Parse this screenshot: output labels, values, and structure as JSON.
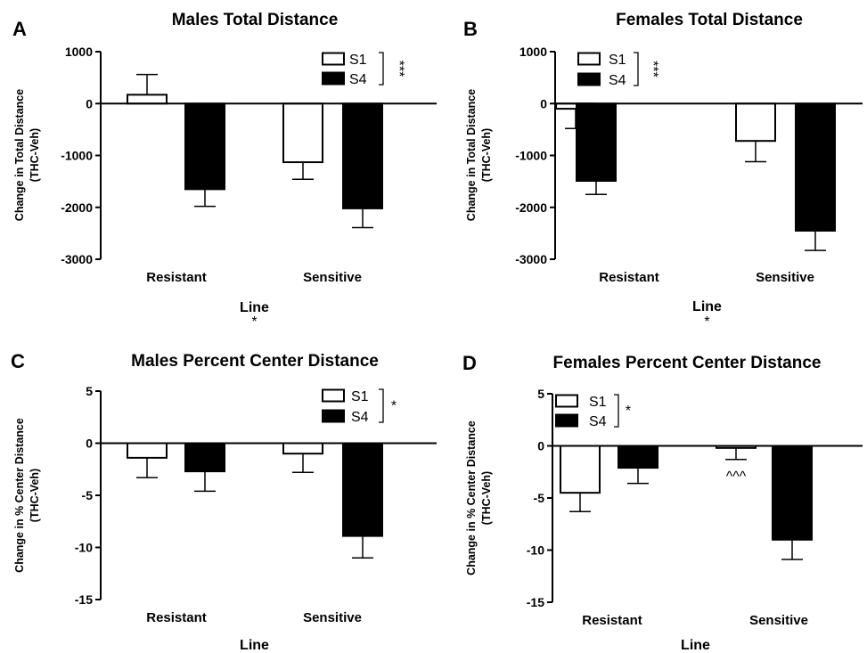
{
  "chart_data": [
    {
      "type": "bar",
      "panel_label": "A",
      "title": "Males Total Distance",
      "xlabel": "Line",
      "xlabel_annotation": "*",
      "ylabel_lines": [
        "Change in Total Distance",
        "(THC-Veh)"
      ],
      "categories": [
        "Resistant",
        "Sensitive"
      ],
      "ylim": [
        -3000,
        1000
      ],
      "yticks": [
        1000,
        0,
        -1000,
        -2000,
        -3000
      ],
      "ytick_labels": [
        "1000",
        "0",
        "-1000",
        "-2000",
        "-3000"
      ],
      "series": [
        {
          "name": "S1",
          "fill": "#ffffff",
          "values": [
            170,
            -1130
          ],
          "errors": [
            390,
            330
          ]
        },
        {
          "name": "S4",
          "fill": "#000000",
          "values": [
            -1650,
            -2020
          ],
          "errors": [
            330,
            370
          ]
        }
      ],
      "legend_position": "top-right",
      "legend_annotation": "***",
      "bar_annotations": []
    },
    {
      "type": "bar",
      "panel_label": "B",
      "title": "Females Total  Distance",
      "xlabel": "Line",
      "xlabel_annotation": "*",
      "ylabel_lines": [
        "Change in Total Distance",
        "(THC-Veh)"
      ],
      "categories": [
        "Resistant",
        "Sensitive"
      ],
      "ylim": [
        -3000,
        1000
      ],
      "yticks": [
        1000,
        0,
        -1000,
        -2000,
        -3000
      ],
      "ytick_labels": [
        "1000",
        "0",
        "-1000",
        "-2000",
        "-3000"
      ],
      "series": [
        {
          "name": "S1",
          "fill": "#ffffff",
          "values": [
            -100,
            -720
          ],
          "errors": [
            380,
            400
          ]
        },
        {
          "name": "S4",
          "fill": "#000000",
          "values": [
            -1490,
            -2450
          ],
          "errors": [
            260,
            380
          ]
        }
      ],
      "legend_position": "top-center",
      "legend_annotation": "***",
      "bar_annotations": []
    },
    {
      "type": "bar",
      "panel_label": "C",
      "title": "Males Percent Center Distance",
      "xlabel": "Line",
      "xlabel_annotation": "",
      "ylabel_lines": [
        "Change in % Center Distance",
        "(THC-Veh)"
      ],
      "categories": [
        "Resistant",
        "Sensitive"
      ],
      "ylim": [
        -15,
        5
      ],
      "yticks": [
        5,
        0,
        -5,
        -10,
        -15
      ],
      "ytick_labels": [
        "5",
        "0",
        "-5",
        "-10",
        "-15"
      ],
      "series": [
        {
          "name": "S1",
          "fill": "#ffffff",
          "values": [
            -1.4,
            -1.0
          ],
          "errors": [
            1.9,
            1.8
          ]
        },
        {
          "name": "S4",
          "fill": "#000000",
          "values": [
            -2.7,
            -8.9
          ],
          "errors": [
            1.9,
            2.1
          ]
        }
      ],
      "legend_position": "top-right",
      "legend_annotation": "*",
      "bar_annotations": []
    },
    {
      "type": "bar",
      "panel_label": "D",
      "title": "Females Percent Center Distance",
      "xlabel": "Line",
      "xlabel_annotation": "",
      "ylabel_lines": [
        "Change in % Center Distance",
        "(THC-Veh)"
      ],
      "categories": [
        "Resistant",
        "Sensitive"
      ],
      "ylim": [
        -15,
        5
      ],
      "yticks": [
        5,
        0,
        -5,
        -10,
        -15
      ],
      "ytick_labels": [
        "5",
        "0",
        "-5",
        "-10",
        "-15"
      ],
      "series": [
        {
          "name": "S1",
          "fill": "#ffffff",
          "values": [
            -4.5,
            -0.2
          ],
          "errors": [
            1.8,
            1.1
          ]
        },
        {
          "name": "S4",
          "fill": "#000000",
          "values": [
            -2.1,
            -9.0
          ],
          "errors": [
            1.5,
            1.9
          ]
        }
      ],
      "legend_position": "top-left",
      "legend_annotation": "*",
      "bar_annotations": [
        {
          "series": "S1",
          "category": "Sensitive",
          "text": "^^^"
        }
      ]
    }
  ]
}
